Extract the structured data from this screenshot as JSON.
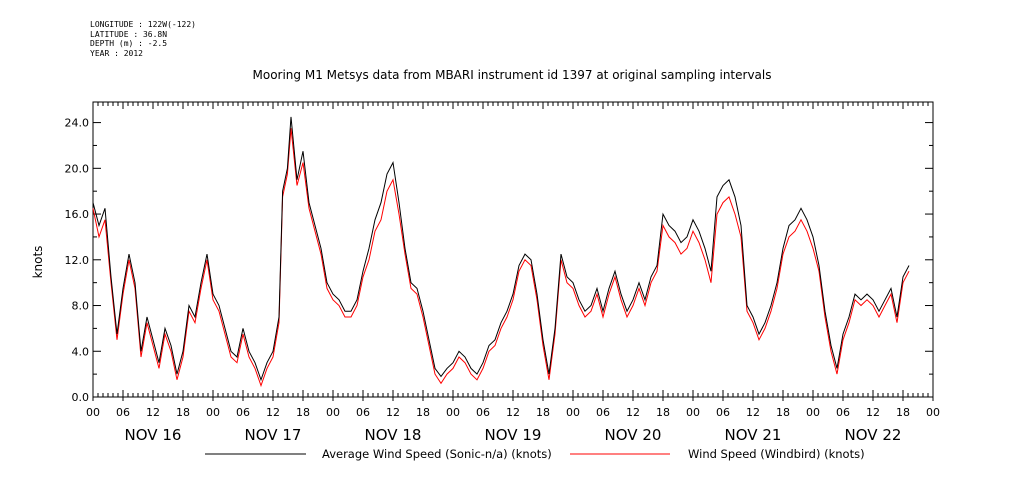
{
  "meta": {
    "longitude": "LONGITUDE : 122W(-122)",
    "latitude": "LATITUDE : 36.8N",
    "depth": "DEPTH (m) : -2.5",
    "year": "YEAR : 2012"
  },
  "chart_data": {
    "type": "line",
    "title": "Mooring M1 Metsys data from MBARI instrument id 1397 at original sampling intervals",
    "ylabel": "knots",
    "xlabel": "",
    "ylim": [
      0,
      25.8
    ],
    "xlim": [
      0,
      7
    ],
    "y_ticks": [
      "0.0",
      "4.0",
      "8.0",
      "12.0",
      "16.0",
      "20.0",
      "24.0"
    ],
    "x_hour_ticks": [
      "00",
      "06",
      "12",
      "18",
      "00",
      "06",
      "12",
      "18",
      "00",
      "06",
      "12",
      "18",
      "00",
      "06",
      "12",
      "18",
      "00",
      "06",
      "12",
      "18",
      "00",
      "06",
      "12",
      "18",
      "00",
      "06",
      "12",
      "18",
      "00"
    ],
    "x_day_labels": [
      "NOV 16",
      "NOV 17",
      "NOV 18",
      "NOV 19",
      "NOV 20",
      "NOV 21",
      "NOV 22"
    ],
    "x_unit": "days since NOV 16 00:00",
    "grid": false,
    "legend_position": "bottom",
    "series": [
      {
        "name": "Average Wind Speed (Sonic-n/a) (knots)",
        "color": "#000000",
        "points": [
          [
            0.0,
            17.0
          ],
          [
            0.05,
            15.0
          ],
          [
            0.1,
            16.5
          ],
          [
            0.15,
            10.5
          ],
          [
            0.2,
            5.5
          ],
          [
            0.25,
            9.5
          ],
          [
            0.3,
            12.5
          ],
          [
            0.35,
            10.0
          ],
          [
            0.4,
            4.0
          ],
          [
            0.45,
            7.0
          ],
          [
            0.5,
            5.0
          ],
          [
            0.55,
            3.0
          ],
          [
            0.6,
            6.0
          ],
          [
            0.65,
            4.5
          ],
          [
            0.7,
            2.0
          ],
          [
            0.75,
            4.0
          ],
          [
            0.8,
            8.0
          ],
          [
            0.85,
            7.0
          ],
          [
            0.9,
            10.0
          ],
          [
            0.95,
            12.5
          ],
          [
            1.0,
            9.0
          ],
          [
            1.05,
            8.0
          ],
          [
            1.1,
            6.0
          ],
          [
            1.15,
            4.0
          ],
          [
            1.2,
            3.5
          ],
          [
            1.25,
            6.0
          ],
          [
            1.3,
            4.0
          ],
          [
            1.35,
            3.0
          ],
          [
            1.4,
            1.5
          ],
          [
            1.45,
            3.0
          ],
          [
            1.5,
            4.0
          ],
          [
            1.55,
            7.0
          ],
          [
            1.58,
            18.0
          ],
          [
            1.62,
            20.0
          ],
          [
            1.65,
            24.5
          ],
          [
            1.7,
            19.0
          ],
          [
            1.75,
            21.5
          ],
          [
            1.8,
            17.0
          ],
          [
            1.85,
            15.0
          ],
          [
            1.9,
            13.0
          ],
          [
            1.95,
            10.0
          ],
          [
            2.0,
            9.0
          ],
          [
            2.05,
            8.5
          ],
          [
            2.1,
            7.5
          ],
          [
            2.15,
            7.5
          ],
          [
            2.2,
            8.5
          ],
          [
            2.25,
            11.0
          ],
          [
            2.3,
            13.0
          ],
          [
            2.35,
            15.5
          ],
          [
            2.4,
            17.0
          ],
          [
            2.45,
            19.5
          ],
          [
            2.5,
            20.5
          ],
          [
            2.55,
            17.0
          ],
          [
            2.6,
            13.0
          ],
          [
            2.65,
            10.0
          ],
          [
            2.7,
            9.5
          ],
          [
            2.75,
            7.5
          ],
          [
            2.8,
            5.0
          ],
          [
            2.85,
            2.5
          ],
          [
            2.9,
            1.8
          ],
          [
            2.95,
            2.5
          ],
          [
            3.0,
            3.0
          ],
          [
            3.05,
            4.0
          ],
          [
            3.1,
            3.5
          ],
          [
            3.15,
            2.5
          ],
          [
            3.2,
            2.0
          ],
          [
            3.25,
            3.0
          ],
          [
            3.3,
            4.5
          ],
          [
            3.35,
            5.0
          ],
          [
            3.4,
            6.5
          ],
          [
            3.45,
            7.5
          ],
          [
            3.5,
            9.0
          ],
          [
            3.55,
            11.5
          ],
          [
            3.6,
            12.5
          ],
          [
            3.65,
            12.0
          ],
          [
            3.7,
            9.0
          ],
          [
            3.75,
            5.0
          ],
          [
            3.8,
            2.0
          ],
          [
            3.85,
            6.0
          ],
          [
            3.9,
            12.5
          ],
          [
            3.95,
            10.5
          ],
          [
            4.0,
            10.0
          ],
          [
            4.05,
            8.5
          ],
          [
            4.1,
            7.5
          ],
          [
            4.15,
            8.0
          ],
          [
            4.2,
            9.5
          ],
          [
            4.25,
            7.5
          ],
          [
            4.3,
            9.5
          ],
          [
            4.35,
            11.0
          ],
          [
            4.4,
            9.0
          ],
          [
            4.45,
            7.5
          ],
          [
            4.5,
            8.5
          ],
          [
            4.55,
            10.0
          ],
          [
            4.6,
            8.5
          ],
          [
            4.65,
            10.5
          ],
          [
            4.7,
            11.5
          ],
          [
            4.75,
            16.0
          ],
          [
            4.8,
            15.0
          ],
          [
            4.85,
            14.5
          ],
          [
            4.9,
            13.5
          ],
          [
            4.95,
            14.0
          ],
          [
            5.0,
            15.5
          ],
          [
            5.05,
            14.5
          ],
          [
            5.1,
            13.0
          ],
          [
            5.15,
            11.0
          ],
          [
            5.2,
            17.5
          ],
          [
            5.25,
            18.5
          ],
          [
            5.3,
            19.0
          ],
          [
            5.35,
            17.5
          ],
          [
            5.4,
            15.0
          ],
          [
            5.45,
            8.0
          ],
          [
            5.5,
            7.0
          ],
          [
            5.55,
            5.5
          ],
          [
            5.6,
            6.5
          ],
          [
            5.65,
            8.0
          ],
          [
            5.7,
            10.0
          ],
          [
            5.75,
            13.0
          ],
          [
            5.8,
            15.0
          ],
          [
            5.85,
            15.5
          ],
          [
            5.9,
            16.5
          ],
          [
            5.95,
            15.5
          ],
          [
            6.0,
            14.0
          ],
          [
            6.05,
            11.5
          ],
          [
            6.1,
            7.5
          ],
          [
            6.15,
            4.5
          ],
          [
            6.2,
            2.5
          ],
          [
            6.25,
            5.5
          ],
          [
            6.3,
            7.0
          ],
          [
            6.35,
            9.0
          ],
          [
            6.4,
            8.5
          ],
          [
            6.45,
            9.0
          ],
          [
            6.5,
            8.5
          ],
          [
            6.55,
            7.5
          ],
          [
            6.6,
            8.5
          ],
          [
            6.65,
            9.5
          ],
          [
            6.7,
            7.0
          ],
          [
            6.75,
            10.5
          ],
          [
            6.8,
            11.5
          ]
        ]
      },
      {
        "name": "Wind Speed (Windbird) (knots)",
        "color": "#ff0000",
        "points": [
          [
            0.0,
            16.5
          ],
          [
            0.05,
            14.0
          ],
          [
            0.1,
            15.5
          ],
          [
            0.15,
            10.0
          ],
          [
            0.2,
            5.0
          ],
          [
            0.25,
            9.0
          ],
          [
            0.3,
            12.0
          ],
          [
            0.35,
            9.5
          ],
          [
            0.4,
            3.5
          ],
          [
            0.45,
            6.5
          ],
          [
            0.5,
            4.5
          ],
          [
            0.55,
            2.5
          ],
          [
            0.6,
            5.5
          ],
          [
            0.65,
            4.0
          ],
          [
            0.7,
            1.5
          ],
          [
            0.75,
            3.5
          ],
          [
            0.8,
            7.5
          ],
          [
            0.85,
            6.5
          ],
          [
            0.9,
            9.5
          ],
          [
            0.95,
            12.0
          ],
          [
            1.0,
            8.5
          ],
          [
            1.05,
            7.5
          ],
          [
            1.1,
            5.5
          ],
          [
            1.15,
            3.5
          ],
          [
            1.2,
            3.0
          ],
          [
            1.25,
            5.5
          ],
          [
            1.3,
            3.5
          ],
          [
            1.35,
            2.5
          ],
          [
            1.4,
            1.0
          ],
          [
            1.45,
            2.5
          ],
          [
            1.5,
            3.5
          ],
          [
            1.55,
            6.5
          ],
          [
            1.58,
            17.5
          ],
          [
            1.62,
            19.5
          ],
          [
            1.65,
            23.5
          ],
          [
            1.7,
            18.5
          ],
          [
            1.75,
            20.5
          ],
          [
            1.8,
            16.5
          ],
          [
            1.85,
            14.5
          ],
          [
            1.9,
            12.5
          ],
          [
            1.95,
            9.5
          ],
          [
            2.0,
            8.5
          ],
          [
            2.05,
            8.0
          ],
          [
            2.1,
            7.0
          ],
          [
            2.15,
            7.0
          ],
          [
            2.2,
            8.0
          ],
          [
            2.25,
            10.5
          ],
          [
            2.3,
            12.0
          ],
          [
            2.35,
            14.5
          ],
          [
            2.4,
            15.5
          ],
          [
            2.45,
            18.0
          ],
          [
            2.5,
            19.0
          ],
          [
            2.55,
            16.0
          ],
          [
            2.6,
            12.5
          ],
          [
            2.65,
            9.5
          ],
          [
            2.7,
            9.0
          ],
          [
            2.75,
            7.0
          ],
          [
            2.8,
            4.5
          ],
          [
            2.85,
            2.0
          ],
          [
            2.9,
            1.2
          ],
          [
            2.95,
            2.0
          ],
          [
            3.0,
            2.5
          ],
          [
            3.05,
            3.5
          ],
          [
            3.1,
            3.0
          ],
          [
            3.15,
            2.0
          ],
          [
            3.2,
            1.5
          ],
          [
            3.25,
            2.5
          ],
          [
            3.3,
            4.0
          ],
          [
            3.35,
            4.5
          ],
          [
            3.4,
            6.0
          ],
          [
            3.45,
            7.0
          ],
          [
            3.5,
            8.5
          ],
          [
            3.55,
            11.0
          ],
          [
            3.6,
            12.0
          ],
          [
            3.65,
            11.5
          ],
          [
            3.7,
            8.5
          ],
          [
            3.75,
            4.5
          ],
          [
            3.8,
            1.5
          ],
          [
            3.85,
            5.5
          ],
          [
            3.9,
            12.0
          ],
          [
            3.95,
            10.0
          ],
          [
            4.0,
            9.5
          ],
          [
            4.05,
            8.0
          ],
          [
            4.1,
            7.0
          ],
          [
            4.15,
            7.5
          ],
          [
            4.2,
            9.0
          ],
          [
            4.25,
            7.0
          ],
          [
            4.3,
            9.0
          ],
          [
            4.35,
            10.5
          ],
          [
            4.4,
            8.5
          ],
          [
            4.45,
            7.0
          ],
          [
            4.5,
            8.0
          ],
          [
            4.55,
            9.5
          ],
          [
            4.6,
            8.0
          ],
          [
            4.65,
            10.0
          ],
          [
            4.7,
            11.0
          ],
          [
            4.75,
            15.0
          ],
          [
            4.8,
            14.0
          ],
          [
            4.85,
            13.5
          ],
          [
            4.9,
            12.5
          ],
          [
            4.95,
            13.0
          ],
          [
            5.0,
            14.5
          ],
          [
            5.05,
            13.5
          ],
          [
            5.1,
            12.0
          ],
          [
            5.15,
            10.0
          ],
          [
            5.2,
            16.0
          ],
          [
            5.25,
            17.0
          ],
          [
            5.3,
            17.5
          ],
          [
            5.35,
            16.0
          ],
          [
            5.4,
            14.0
          ],
          [
            5.45,
            7.5
          ],
          [
            5.5,
            6.5
          ],
          [
            5.55,
            5.0
          ],
          [
            5.6,
            6.0
          ],
          [
            5.65,
            7.5
          ],
          [
            5.7,
            9.5
          ],
          [
            5.75,
            12.5
          ],
          [
            5.8,
            14.0
          ],
          [
            5.85,
            14.5
          ],
          [
            5.9,
            15.5
          ],
          [
            5.95,
            14.5
          ],
          [
            6.0,
            13.0
          ],
          [
            6.05,
            11.0
          ],
          [
            6.1,
            7.0
          ],
          [
            6.15,
            4.0
          ],
          [
            6.2,
            2.0
          ],
          [
            6.25,
            5.0
          ],
          [
            6.3,
            6.5
          ],
          [
            6.35,
            8.5
          ],
          [
            6.4,
            8.0
          ],
          [
            6.45,
            8.5
          ],
          [
            6.5,
            8.0
          ],
          [
            6.55,
            7.0
          ],
          [
            6.6,
            8.0
          ],
          [
            6.65,
            9.0
          ],
          [
            6.7,
            6.5
          ],
          [
            6.75,
            10.0
          ],
          [
            6.8,
            11.0
          ]
        ]
      }
    ]
  }
}
